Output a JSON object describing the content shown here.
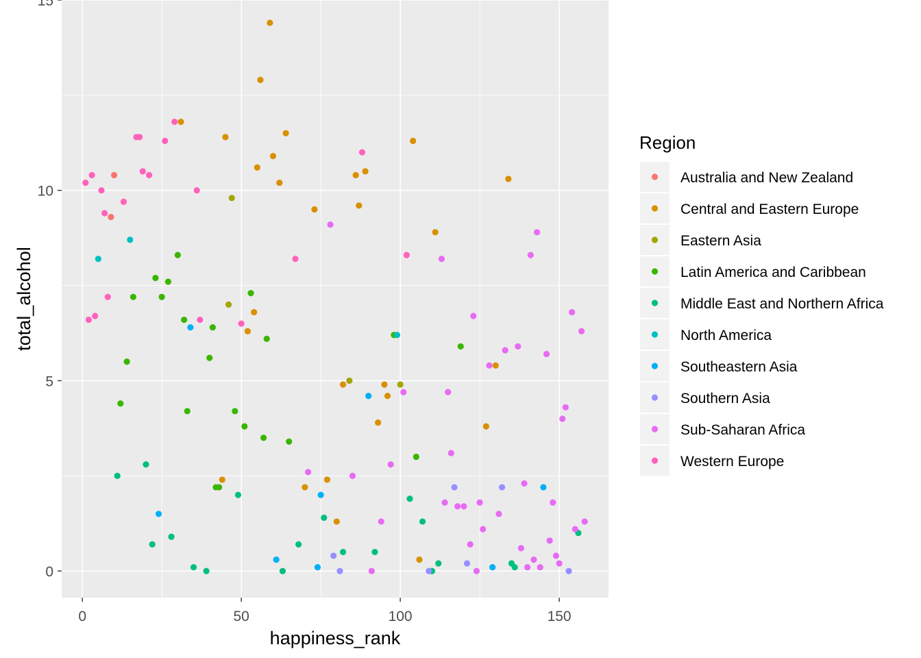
{
  "chart_data": {
    "type": "scatter",
    "title": "",
    "xlabel": "happiness_rank",
    "ylabel": "total_alcohol",
    "xlim": [
      -6.5,
      165.5
    ],
    "ylim": [
      -0.7,
      15.0
    ],
    "x_ticks": [
      0,
      50,
      100,
      150
    ],
    "x_tick_labels": [
      "0",
      "50",
      "100",
      "150"
    ],
    "y_ticks": [
      0,
      5,
      10,
      15
    ],
    "y_tick_labels": [
      "0",
      "5",
      "10",
      "15"
    ],
    "grid": true,
    "legend_title": "Region",
    "legend_position": "right",
    "series": [
      {
        "name": "Australia and New Zealand",
        "color": "#F8766D",
        "points": [
          [
            9,
            9.3
          ],
          [
            10,
            10.4
          ]
        ]
      },
      {
        "name": "Central and Eastern Europe",
        "color": "#D89000",
        "points": [
          [
            31,
            11.8
          ],
          [
            44,
            2.4
          ],
          [
            45,
            11.4
          ],
          [
            52,
            6.3
          ],
          [
            54,
            6.8
          ],
          [
            55,
            10.6
          ],
          [
            56,
            12.9
          ],
          [
            59,
            14.4
          ],
          [
            60,
            10.9
          ],
          [
            62,
            10.2
          ],
          [
            64,
            11.5
          ],
          [
            70,
            2.2
          ],
          [
            73,
            9.5
          ],
          [
            77,
            2.4
          ],
          [
            80,
            1.3
          ],
          [
            82,
            4.9
          ],
          [
            86,
            10.4
          ],
          [
            87,
            9.6
          ],
          [
            89,
            10.5
          ],
          [
            93,
            3.9
          ],
          [
            95,
            4.9
          ],
          [
            96,
            4.6
          ],
          [
            104,
            11.3
          ],
          [
            106,
            0.3
          ],
          [
            111,
            8.9
          ],
          [
            127,
            3.8
          ],
          [
            130,
            5.4
          ],
          [
            134,
            10.3
          ]
        ]
      },
      {
        "name": "Eastern Asia",
        "color": "#A3A500",
        "points": [
          [
            46,
            7.0
          ],
          [
            47,
            9.8
          ],
          [
            84,
            5.0
          ],
          [
            100,
            4.9
          ]
        ]
      },
      {
        "name": "Latin America and Caribbean",
        "color": "#39B600",
        "points": [
          [
            12,
            4.4
          ],
          [
            14,
            5.5
          ],
          [
            16,
            7.2
          ],
          [
            23,
            7.7
          ],
          [
            25,
            7.2
          ],
          [
            27,
            7.6
          ],
          [
            30,
            8.3
          ],
          [
            32,
            6.6
          ],
          [
            33,
            4.2
          ],
          [
            40,
            5.6
          ],
          [
            41,
            6.4
          ],
          [
            42,
            2.2
          ],
          [
            43,
            2.2
          ],
          [
            48,
            4.2
          ],
          [
            51,
            3.8
          ],
          [
            53,
            7.3
          ],
          [
            57,
            3.5
          ],
          [
            58,
            6.1
          ],
          [
            65,
            3.4
          ],
          [
            98,
            6.2
          ],
          [
            105,
            3.0
          ],
          [
            119,
            5.9
          ]
        ]
      },
      {
        "name": "Middle East and Northern Africa",
        "color": "#00BF7D",
        "points": [
          [
            11,
            2.5
          ],
          [
            20,
            2.8
          ],
          [
            22,
            0.7
          ],
          [
            28,
            0.9
          ],
          [
            35,
            0.1
          ],
          [
            39,
            0.0
          ],
          [
            49,
            2.0
          ],
          [
            63,
            0.0
          ],
          [
            68,
            0.7
          ],
          [
            76,
            1.4
          ],
          [
            82,
            0.5
          ],
          [
            92,
            0.5
          ],
          [
            103,
            1.9
          ],
          [
            107,
            1.3
          ],
          [
            110,
            0.0
          ],
          [
            112,
            0.2
          ],
          [
            135,
            0.2
          ],
          [
            136,
            0.1
          ],
          [
            156,
            1.0
          ]
        ]
      },
      {
        "name": "North America",
        "color": "#00BFC4",
        "points": [
          [
            5,
            8.2
          ],
          [
            15,
            8.7
          ],
          [
            99,
            6.2
          ]
        ]
      },
      {
        "name": "Southeastern Asia",
        "color": "#00B0F6",
        "points": [
          [
            24,
            1.5
          ],
          [
            34,
            6.4
          ],
          [
            61,
            0.3
          ],
          [
            74,
            0.1
          ],
          [
            75,
            2.0
          ],
          [
            90,
            4.6
          ],
          [
            129,
            0.1
          ],
          [
            145,
            2.2
          ]
        ]
      },
      {
        "name": "Southern Asia",
        "color": "#9590FF",
        "points": [
          [
            79,
            0.4
          ],
          [
            81,
            0.0
          ],
          [
            109,
            0.0
          ],
          [
            117,
            2.2
          ],
          [
            121,
            0.2
          ],
          [
            132,
            2.2
          ],
          [
            153,
            0.0
          ]
        ]
      },
      {
        "name": "Sub-Saharan Africa",
        "color": "#E76BF3",
        "points": [
          [
            71,
            2.6
          ],
          [
            78,
            9.1
          ],
          [
            85,
            2.5
          ],
          [
            91,
            0.0
          ],
          [
            94,
            1.3
          ],
          [
            97,
            2.8
          ],
          [
            101,
            4.7
          ],
          [
            113,
            8.2
          ],
          [
            114,
            1.8
          ],
          [
            115,
            4.7
          ],
          [
            116,
            3.1
          ],
          [
            118,
            1.7
          ],
          [
            120,
            1.7
          ],
          [
            122,
            0.7
          ],
          [
            123,
            6.7
          ],
          [
            124,
            0.0
          ],
          [
            125,
            1.8
          ],
          [
            126,
            1.1
          ],
          [
            128,
            5.4
          ],
          [
            131,
            1.5
          ],
          [
            133,
            5.8
          ],
          [
            137,
            5.9
          ],
          [
            138,
            0.6
          ],
          [
            139,
            2.3
          ],
          [
            140,
            0.1
          ],
          [
            141,
            8.3
          ],
          [
            142,
            0.3
          ],
          [
            143,
            8.9
          ],
          [
            144,
            0.1
          ],
          [
            146,
            5.7
          ],
          [
            147,
            0.8
          ],
          [
            148,
            1.8
          ],
          [
            149,
            0.4
          ],
          [
            150,
            0.2
          ],
          [
            151,
            4.0
          ],
          [
            152,
            4.3
          ],
          [
            154,
            6.8
          ],
          [
            155,
            1.1
          ],
          [
            157,
            6.3
          ],
          [
            158,
            1.3
          ]
        ]
      },
      {
        "name": "Western Europe",
        "color": "#FF62BC",
        "points": [
          [
            1,
            10.2
          ],
          [
            2,
            6.6
          ],
          [
            3,
            10.4
          ],
          [
            4,
            6.7
          ],
          [
            6,
            10.0
          ],
          [
            7,
            9.4
          ],
          [
            8,
            7.2
          ],
          [
            13,
            9.7
          ],
          [
            17,
            11.4
          ],
          [
            18,
            11.4
          ],
          [
            19,
            10.5
          ],
          [
            21,
            10.4
          ],
          [
            26,
            11.3
          ],
          [
            29,
            11.8
          ],
          [
            36,
            10.0
          ],
          [
            37,
            6.6
          ],
          [
            50,
            6.5
          ],
          [
            67,
            8.2
          ],
          [
            88,
            11.0
          ],
          [
            102,
            8.3
          ]
        ]
      }
    ]
  }
}
